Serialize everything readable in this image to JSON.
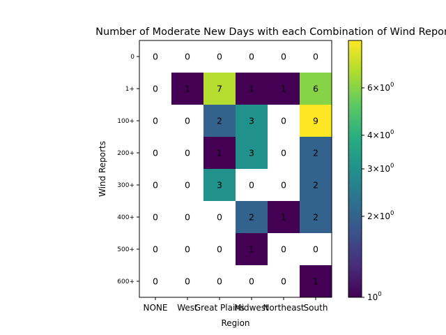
{
  "chart_data": {
    "type": "heatmap",
    "title": "Number of Moderate New Days with each Combination of Wind Reports and R",
    "xlabel": "Region",
    "ylabel": "Wind Reports",
    "x_categories": [
      "NONE",
      "West",
      "Great Plains",
      "Midwest",
      "Northeast",
      "South"
    ],
    "y_categories": [
      "0",
      "1+",
      "100+",
      "200+",
      "300+",
      "400+",
      "500+",
      "600+"
    ],
    "values": [
      [
        0,
        0,
        0,
        0,
        0,
        0
      ],
      [
        0,
        1,
        7,
        1,
        1,
        6
      ],
      [
        0,
        0,
        2,
        3,
        0,
        9
      ],
      [
        0,
        0,
        1,
        3,
        0,
        2
      ],
      [
        0,
        0,
        3,
        0,
        0,
        2
      ],
      [
        0,
        0,
        0,
        2,
        1,
        2
      ],
      [
        0,
        0,
        0,
        1,
        0,
        0
      ],
      [
        0,
        0,
        0,
        0,
        0,
        1
      ]
    ],
    "color_scale": "log",
    "colormap": "viridis",
    "color_range": [
      1,
      9
    ],
    "colorbar": {
      "ticks": [
        1,
        2,
        3,
        4,
        6
      ],
      "labels": [
        "10^0",
        "2×10^0",
        "3×10^0",
        "4×10^0",
        "6×10^0"
      ]
    },
    "grid": false
  }
}
